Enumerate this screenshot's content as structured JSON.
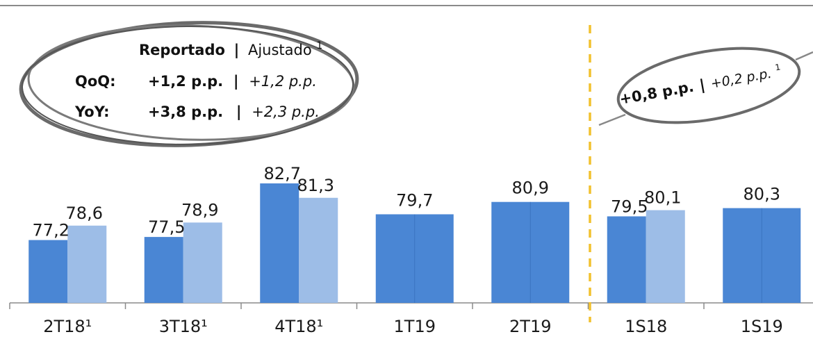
{
  "chart_data": {
    "type": "bar",
    "categories": [
      "2T18¹",
      "3T18¹",
      "4T18¹",
      "1T19",
      "2T19",
      "1S18",
      "1S19"
    ],
    "series": [
      {
        "name": "Reportado",
        "values": [
          77.2,
          77.5,
          82.7,
          79.7,
          80.9,
          79.5,
          80.3
        ]
      },
      {
        "name": "Ajustado",
        "values": [
          78.6,
          78.9,
          81.3,
          79.7,
          80.9,
          80.1,
          80.3
        ]
      }
    ],
    "value_labels": [
      [
        "77,2",
        "78,6"
      ],
      [
        "77,5",
        "78,9"
      ],
      [
        "82,7",
        "81,3"
      ],
      [
        "79,7"
      ],
      [
        "80,9"
      ],
      [
        "79,5",
        "80,1"
      ],
      [
        "80,3"
      ]
    ],
    "ylim": [
      0,
      100
    ],
    "grid": false,
    "colors": {
      "reportado": "#4a86d4",
      "ajustado": "#9dbde7",
      "separator": "#f2c12e",
      "ellipse": "#666666",
      "line": "#888888"
    }
  },
  "annotations": {
    "quarter_box": {
      "header_reported": "Reportado",
      "header_sep": "|",
      "header_adjusted": "Ajustado",
      "header_sup": "1",
      "qoq_label": "QoQ:",
      "qoq_reported": "+1,2 p.p.",
      "qoq_sep": "|",
      "qoq_adjusted": "+1,2 p.p.",
      "yoy_label": "YoY:",
      "yoy_reported": "+3,8 p.p.",
      "yoy_sep": "|",
      "yoy_adjusted": "+2,3 p.p."
    },
    "semester_box": {
      "reported": "+0,8 p.p.",
      "sep": "|",
      "adjusted": "+0,2 p.p.",
      "sup": "1"
    }
  }
}
